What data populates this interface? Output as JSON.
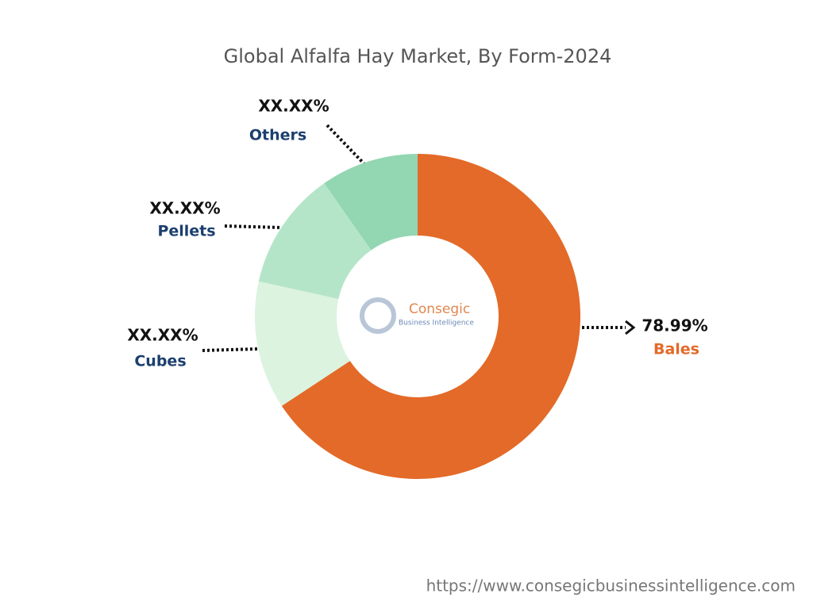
{
  "chart_data": {
    "type": "donut",
    "title": "Global Alfalfa Hay Market, By Form-2024",
    "categories": [
      "Bales",
      "Cubes",
      "Pellets",
      "Others"
    ],
    "values": [
      78.99,
      15.3,
      14.2,
      11.7
    ],
    "value_labels": [
      "78.99%",
      "XX.XX%",
      "XX.XX%",
      "XX.XX%"
    ],
    "colors": [
      "#e36a28",
      "#dcf3e0",
      "#b5e5c9",
      "#93d6b2"
    ]
  },
  "logo": {
    "name": "Consegic",
    "tagline": "Business Intelligence"
  },
  "footer": "https://www.consegicbusinessintelligence.com"
}
